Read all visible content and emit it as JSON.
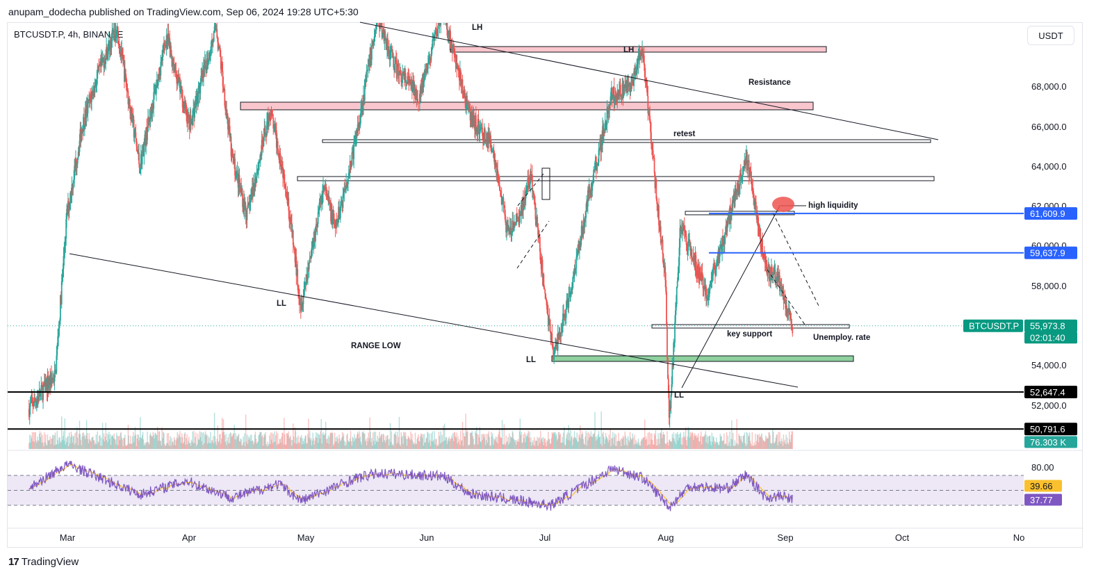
{
  "header": {
    "published_by": "anupam_dodecha published on TradingView.com, Sep 06, 2024 19:28 UTC+5:30",
    "symbol": "BTCUSDT.P, 4h, BINANCE",
    "currency_button": "USDT"
  },
  "footer": {
    "brand": "TradingView",
    "brand_logo": "tradingview-logo-icon"
  },
  "colors": {
    "up": "#26a69a",
    "down": "#ef5350",
    "resistance_fill": "#f8c6cc",
    "support_fill": "#8fd19e",
    "blue_line": "#2962ff",
    "rsi_line": "#7e57c2",
    "rsi_ma": "#fbc02d",
    "rsi_band": "#ede7f6"
  },
  "chart_data": {
    "type": "candlestick",
    "timeframe": "4h",
    "x_tick_labels": [
      "Mar",
      "Apr",
      "May",
      "Jun",
      "Jul",
      "Aug",
      "Sep",
      "Oct",
      "No"
    ],
    "y_tick_labels": [
      "68,000.0",
      "66,000.0",
      "64,000.0",
      "62,000.0",
      "60,000.0",
      "58,000.0",
      "54,000.0",
      "52,000.0"
    ],
    "ylim": [
      49500,
      70500
    ],
    "price_path": [
      {
        "date": "2024-02-20",
        "price": 51800
      },
      {
        "date": "2024-02-27",
        "price": 53500
      },
      {
        "date": "2024-03-01",
        "price": 61500
      },
      {
        "date": "2024-03-05",
        "price": 66000
      },
      {
        "date": "2024-03-09",
        "price": 68500
      },
      {
        "date": "2024-03-14",
        "price": 71000
      },
      {
        "date": "2024-03-20",
        "price": 64000
      },
      {
        "date": "2024-03-27",
        "price": 70500
      },
      {
        "date": "2024-04-02",
        "price": 66000
      },
      {
        "date": "2024-04-09",
        "price": 71000
      },
      {
        "date": "2024-04-13",
        "price": 64500
      },
      {
        "date": "2024-04-17",
        "price": 61500
      },
      {
        "date": "2024-04-23",
        "price": 66800
      },
      {
        "date": "2024-04-27",
        "price": 63200
      },
      {
        "date": "2024-05-01",
        "price": 57000
      },
      {
        "date": "2024-05-07",
        "price": 63000
      },
      {
        "date": "2024-05-10",
        "price": 60800
      },
      {
        "date": "2024-05-15",
        "price": 65000
      },
      {
        "date": "2024-05-21",
        "price": 71500
      },
      {
        "date": "2024-05-26",
        "price": 68800
      },
      {
        "date": "2024-06-01",
        "price": 67500
      },
      {
        "date": "2024-06-07",
        "price": 71900
      },
      {
        "date": "2024-06-10",
        "price": 69500
      },
      {
        "date": "2024-06-14",
        "price": 66500
      },
      {
        "date": "2024-06-20",
        "price": 65000
      },
      {
        "date": "2024-06-24",
        "price": 60500
      },
      {
        "date": "2024-06-27",
        "price": 61500
      },
      {
        "date": "2024-06-30",
        "price": 63500
      },
      {
        "date": "2024-07-04",
        "price": 57000
      },
      {
        "date": "2024-07-06",
        "price": 54500
      },
      {
        "date": "2024-07-10",
        "price": 57500
      },
      {
        "date": "2024-07-15",
        "price": 62500
      },
      {
        "date": "2024-07-21",
        "price": 67500
      },
      {
        "date": "2024-07-26",
        "price": 68000
      },
      {
        "date": "2024-07-29",
        "price": 69900
      },
      {
        "date": "2024-07-31",
        "price": 66000
      },
      {
        "date": "2024-08-02",
        "price": 62000
      },
      {
        "date": "2024-08-04",
        "price": 58500
      },
      {
        "date": "2024-08-05",
        "price": 51000
      },
      {
        "date": "2024-08-08",
        "price": 61000
      },
      {
        "date": "2024-08-12",
        "price": 59000
      },
      {
        "date": "2024-08-15",
        "price": 57500
      },
      {
        "date": "2024-08-20",
        "price": 61000
      },
      {
        "date": "2024-08-25",
        "price": 64500
      },
      {
        "date": "2024-08-27",
        "price": 62500
      },
      {
        "date": "2024-08-30",
        "price": 59000
      },
      {
        "date": "2024-09-03",
        "price": 58000
      },
      {
        "date": "2024-09-06",
        "price": 55973.8
      }
    ],
    "current_price": "55,973.8",
    "countdown": "02:01:40",
    "volume_label": "76.303 K",
    "price_tags": [
      {
        "label": "61,609.9",
        "price": 61609.9,
        "color": "#2962ff"
      },
      {
        "label": "59,637.9",
        "price": 59637.9,
        "color": "#2962ff"
      },
      {
        "label": "52,647.4",
        "price": 52647.4,
        "color": "#000000"
      },
      {
        "label": "50,791.6",
        "price": 50791.6,
        "color": "#000000"
      }
    ],
    "symbol_tag": "BTCUSDT.P",
    "rsi": {
      "tick_label": "80.00",
      "value_ma": "39.66",
      "value_rsi": "37.77",
      "path": [
        {
          "date": "2024-02-20",
          "rsi": 52
        },
        {
          "date": "2024-03-01",
          "rsi": 84
        },
        {
          "date": "2024-03-10",
          "rsi": 65
        },
        {
          "date": "2024-03-20",
          "rsi": 44
        },
        {
          "date": "2024-04-01",
          "rsi": 62
        },
        {
          "date": "2024-04-13",
          "rsi": 40
        },
        {
          "date": "2024-04-25",
          "rsi": 58
        },
        {
          "date": "2024-05-01",
          "rsi": 36
        },
        {
          "date": "2024-05-15",
          "rsi": 65
        },
        {
          "date": "2024-05-21",
          "rsi": 72
        },
        {
          "date": "2024-06-07",
          "rsi": 68
        },
        {
          "date": "2024-06-14",
          "rsi": 45
        },
        {
          "date": "2024-06-24",
          "rsi": 38
        },
        {
          "date": "2024-07-05",
          "rsi": 30
        },
        {
          "date": "2024-07-15",
          "rsi": 60
        },
        {
          "date": "2024-07-21",
          "rsi": 78
        },
        {
          "date": "2024-07-29",
          "rsi": 66
        },
        {
          "date": "2024-08-05",
          "rsi": 28
        },
        {
          "date": "2024-08-10",
          "rsi": 55
        },
        {
          "date": "2024-08-20",
          "rsi": 52
        },
        {
          "date": "2024-08-25",
          "rsi": 70
        },
        {
          "date": "2024-08-30",
          "rsi": 40
        },
        {
          "date": "2024-09-03",
          "rsi": 42
        },
        {
          "date": "2024-09-06",
          "rsi": 37.77
        }
      ]
    },
    "annotations": {
      "lh_top": "LH",
      "lh_mid": "LH",
      "resistance": "Resistance",
      "retest": "retest",
      "high_liquidity": "high liquidity",
      "ll_may": "LL",
      "range_low": "RANGE LOW",
      "ll_jul": "LL",
      "ll_aug": "LL",
      "key_support": "key support",
      "unemploy_rate": "Unemploy. rate"
    }
  }
}
